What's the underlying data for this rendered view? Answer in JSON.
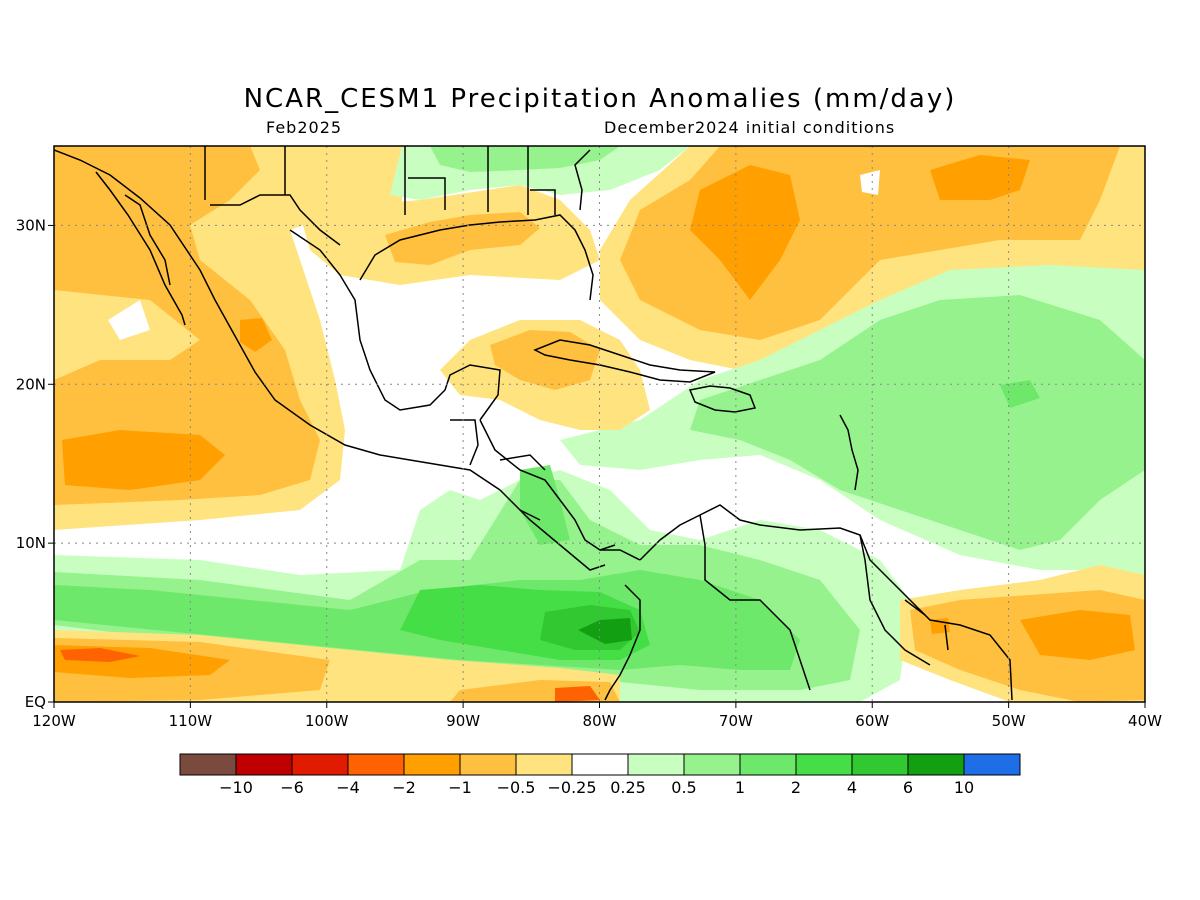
{
  "title": "NCAR_CESM1 Precipitation Anomalies (mm/day)",
  "valid_month": "Feb2025",
  "init_conditions": "December2024 initial conditions",
  "map": {
    "lon_range": [
      -120,
      -40
    ],
    "lat_range": [
      0,
      35
    ],
    "lon_ticks": [
      {
        "lon": -120,
        "label": "120W"
      },
      {
        "lon": -110,
        "label": "110W"
      },
      {
        "lon": -100,
        "label": "100W"
      },
      {
        "lon": -90,
        "label": "90W"
      },
      {
        "lon": -80,
        "label": "80W"
      },
      {
        "lon": -70,
        "label": "70W"
      },
      {
        "lon": -60,
        "label": "60W"
      },
      {
        "lon": -50,
        "label": "50W"
      },
      {
        "lon": -40,
        "label": "40W"
      }
    ],
    "lat_ticks": [
      {
        "lat": 0,
        "label": "EQ"
      },
      {
        "lat": 10,
        "label": "10N"
      },
      {
        "lat": 20,
        "label": "20N"
      },
      {
        "lat": 30,
        "label": "30N"
      }
    ],
    "grid": "dotted"
  },
  "colorbar": {
    "colors": [
      "#7b4a3f",
      "#c00000",
      "#e01b00",
      "#ff6200",
      "#ff9f00",
      "#ffbf3f",
      "#ffe37f",
      "#ffffff",
      "#c8ffc0",
      "#96f28c",
      "#6ee86a",
      "#46de46",
      "#32c832",
      "#12a012",
      "#1e6ee8"
    ],
    "labels": [
      "−10",
      "−6",
      "−4",
      "−2",
      "−1",
      "−0.5",
      "−0.25",
      "0.25",
      "0.5",
      "1",
      "2",
      "4",
      "6",
      "10"
    ]
  },
  "colors": {
    "orange": "#ffbf3f",
    "dark_orange": "#ff9f00",
    "light_orange": "#ffe37f",
    "red_orange": "#ff6200",
    "light_green": "#c8ffc0",
    "green": "#96f28c",
    "mid_green": "#6ee86a",
    "bright_green": "#46de46",
    "dark_green": "#32c832",
    "darkest_green": "#12a012"
  }
}
